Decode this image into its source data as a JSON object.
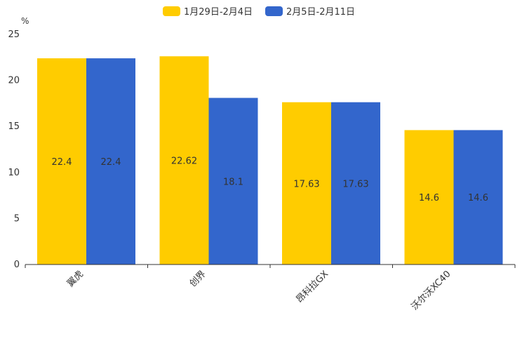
{
  "chart_data": {
    "type": "bar",
    "unit_label": "%",
    "categories": [
      "翼虎",
      "创界",
      "昂科拉GX",
      "沃尔沃XC40"
    ],
    "series": [
      {
        "name": "1月29日-2月4日",
        "color": "#ffcc00",
        "values": [
          22.4,
          22.62,
          17.63,
          14.6
        ]
      },
      {
        "name": "2月5日-2月11日",
        "color": "#3366cc",
        "values": [
          22.4,
          18.1,
          17.63,
          14.6
        ]
      }
    ],
    "ylim": [
      0,
      25
    ],
    "yticks": [
      0,
      5,
      10,
      15,
      20,
      25
    ],
    "legend_position": "top-center",
    "grid": false
  }
}
